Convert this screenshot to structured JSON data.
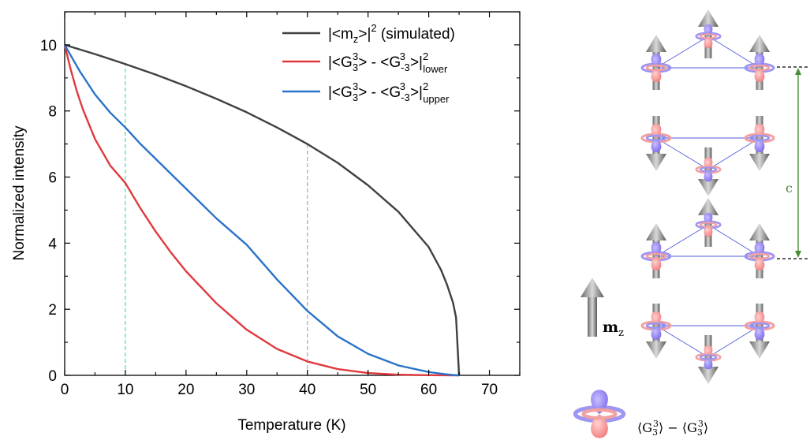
{
  "chart_data": {
    "type": "line",
    "xlabel": "Temperature (K)",
    "ylabel": "Normalized intensity",
    "xlim": [
      0,
      75
    ],
    "ylim": [
      0,
      11
    ],
    "xticks": [
      0,
      10,
      20,
      30,
      40,
      50,
      60,
      70
    ],
    "yticks": [
      0,
      2,
      4,
      6,
      8,
      10
    ],
    "legend_position": "top-right",
    "grid": false,
    "series": [
      {
        "key": "mz",
        "color": "#404040",
        "x": [
          0,
          5,
          10,
          15,
          20,
          25,
          30,
          35,
          40,
          45,
          50,
          55,
          60,
          62,
          63,
          64,
          64.5,
          65
        ],
        "y": [
          10.0,
          9.72,
          9.42,
          9.1,
          8.75,
          8.37,
          7.96,
          7.5,
          7.0,
          6.43,
          5.75,
          4.95,
          3.88,
          3.2,
          2.75,
          2.2,
          1.75,
          0.0
        ]
      },
      {
        "key": "g3_lower",
        "color": "#e0393e",
        "x": [
          0,
          1,
          2,
          3,
          5,
          7.5,
          10,
          12.5,
          15,
          17.5,
          20,
          25,
          30,
          35,
          40,
          45,
          50,
          55,
          60,
          62.5,
          65
        ],
        "y": [
          10.0,
          9.25,
          8.6,
          8.05,
          7.15,
          6.35,
          5.82,
          5.05,
          4.35,
          3.72,
          3.15,
          2.18,
          1.38,
          0.8,
          0.42,
          0.19,
          0.07,
          0.02,
          0.004,
          0.001,
          0.0
        ]
      },
      {
        "key": "g3_upper",
        "color": "#2b73c8",
        "x": [
          0,
          2.5,
          5,
          7.5,
          10,
          12.5,
          15,
          20,
          25,
          30,
          35,
          40,
          45,
          50,
          55,
          60,
          62.5,
          64,
          65
        ],
        "y": [
          10.0,
          9.2,
          8.5,
          7.95,
          7.5,
          7.0,
          6.55,
          5.65,
          4.75,
          3.95,
          2.9,
          1.95,
          1.18,
          0.65,
          0.3,
          0.1,
          0.04,
          0.01,
          0.0
        ]
      }
    ],
    "reference_lines": [
      {
        "x": 10,
        "color": "#4fe3b5"
      },
      {
        "x": 40,
        "color": "#b0b0b0"
      }
    ],
    "legend": [
      {
        "key": "mz",
        "parts": [
          "|<m",
          "z",
          ">|",
          "2",
          " (simulated)"
        ]
      },
      {
        "key": "g3_lower",
        "parts": [
          "|<G",
          "3",
          "3",
          "> - <G",
          "-3",
          "3",
          ">|",
          "2",
          "lower"
        ]
      },
      {
        "key": "g3_upper",
        "parts": [
          "|<G",
          "3",
          "3",
          "> - <G",
          "-3",
          "3",
          ">|",
          "2",
          "upper"
        ]
      }
    ]
  },
  "diagram": {
    "c_label": "c",
    "mz_label": "m",
    "mz_sub": "z",
    "orbital_label_parts": [
      "⟨G",
      "3",
      "3",
      "⟩ − ⟨G",
      "3",
      "3",
      "⟩"
    ],
    "c_arrow_color": "#4a8c3a",
    "spin_up_color": "#8a8a8a",
    "orbital_blue": "#8a7cf0",
    "orbital_red": "#f29090"
  }
}
